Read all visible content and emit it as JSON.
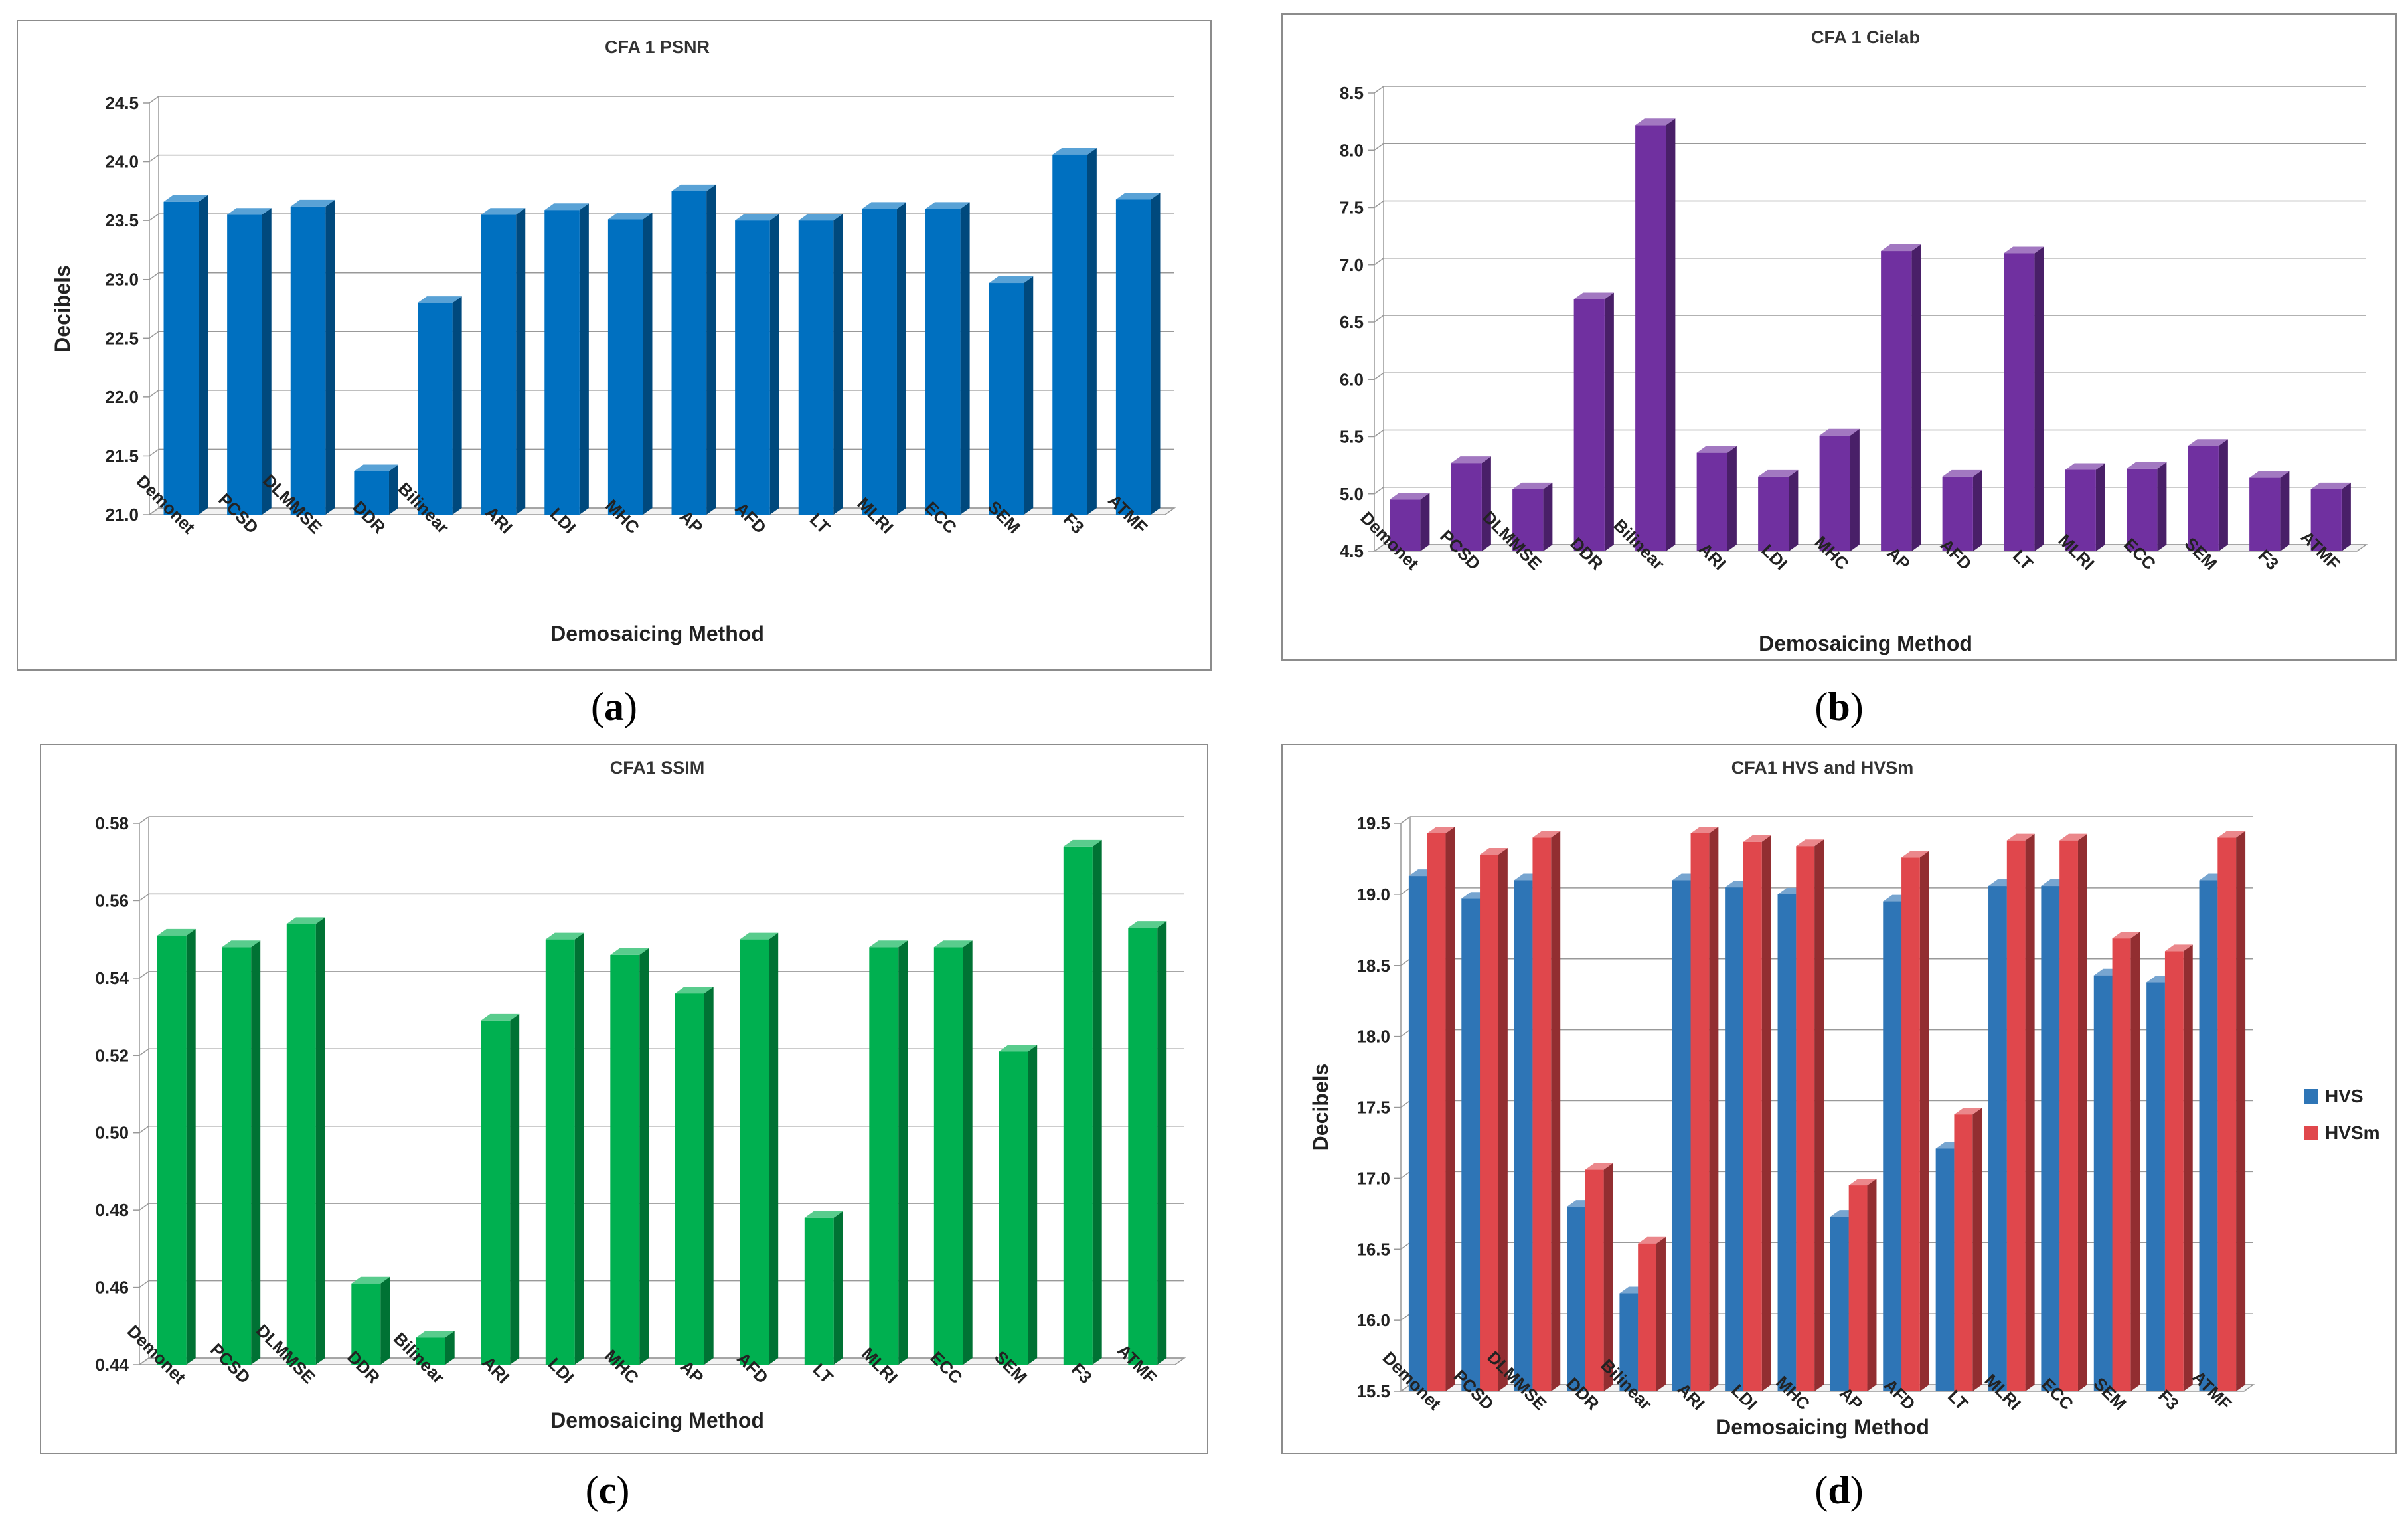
{
  "captions": [
    "a",
    "b",
    "c",
    "d"
  ],
  "chart_data": [
    {
      "type": "bar",
      "title": "CFA 1 PSNR",
      "xlabel": "Demosaicing Method",
      "ylabel": "Decibels",
      "ylim": [
        21.0,
        24.5
      ],
      "yticks": [
        "21.0",
        "21.5",
        "22.0",
        "22.5",
        "23.0",
        "23.5",
        "24.0",
        "24.5"
      ],
      "categories": [
        "Demonet",
        "PCSD",
        "DLMMSE",
        "DDR",
        "Bilinear",
        "ARI",
        "LDI",
        "MHC",
        "AP",
        "AFD",
        "LT",
        "MLRI",
        "ECC",
        "SEM",
        "F3",
        "ATMF"
      ],
      "series": [
        {
          "name": "PSNR",
          "color": "#0070C0",
          "values": [
            23.66,
            23.55,
            23.62,
            21.37,
            22.8,
            23.55,
            23.59,
            23.51,
            23.75,
            23.5,
            23.5,
            23.6,
            23.6,
            22.97,
            24.06,
            23.68
          ]
        }
      ]
    },
    {
      "type": "bar",
      "title": "CFA 1 Cielab",
      "xlabel": "Demosaicing Method",
      "ylabel": "",
      "ylim": [
        4.5,
        8.5
      ],
      "yticks": [
        "4.5",
        "5.0",
        "5.5",
        "6.0",
        "6.5",
        "7.0",
        "7.5",
        "8.0",
        "8.5"
      ],
      "categories": [
        "Demonet",
        "PCSD",
        "DLMMSE",
        "DDR",
        "Bilinear",
        "ARI",
        "LDI",
        "MHC",
        "AP",
        "AFD",
        "LT",
        "MLRI",
        "ECC",
        "SEM",
        "F3",
        "ATMF"
      ],
      "series": [
        {
          "name": "Cielab",
          "color": "#7030A0",
          "values": [
            4.95,
            5.27,
            5.04,
            6.7,
            8.22,
            5.36,
            5.15,
            5.51,
            7.12,
            5.15,
            7.1,
            5.21,
            5.22,
            5.42,
            5.14,
            5.04
          ]
        }
      ]
    },
    {
      "type": "bar",
      "title": "CFA1 SSIM",
      "xlabel": "Demosaicing Method",
      "ylabel": "",
      "ylim": [
        0.44,
        0.58
      ],
      "yticks": [
        "0.44",
        "0.46",
        "0.48",
        "0.50",
        "0.52",
        "0.54",
        "0.56",
        "0.58"
      ],
      "categories": [
        "Demonet",
        "PCSD",
        "DLMMSE",
        "DDR",
        "Bilinear",
        "ARI",
        "LDI",
        "MHC",
        "AP",
        "AFD",
        "LT",
        "MLRI",
        "ECC",
        "SEM",
        "F3",
        "ATMF"
      ],
      "series": [
        {
          "name": "SSIM",
          "color": "#00B050",
          "values": [
            0.551,
            0.548,
            0.554,
            0.461,
            0.447,
            0.529,
            0.55,
            0.546,
            0.536,
            0.55,
            0.478,
            0.548,
            0.548,
            0.521,
            0.574,
            0.553
          ]
        }
      ]
    },
    {
      "type": "bar",
      "title": "CFA1 HVS and HVSm",
      "xlabel": "Demosaicing Method",
      "ylabel": "Decibels",
      "ylim": [
        15.5,
        19.5
      ],
      "yticks": [
        "15.5",
        "16.0",
        "16.5",
        "17.0",
        "17.5",
        "18.0",
        "18.5",
        "19.0",
        "19.5"
      ],
      "categories": [
        "Demonet",
        "PCSD",
        "DLMMSE",
        "DDR",
        "Bilinear",
        "ARI",
        "LDI",
        "MHC",
        "AP",
        "AFD",
        "LT",
        "MLRI",
        "ECC",
        "SEM",
        "F3",
        "ATMF"
      ],
      "legend": "right",
      "series": [
        {
          "name": "HVS",
          "color": "#2E75B6",
          "values": [
            19.13,
            18.97,
            19.1,
            16.8,
            16.19,
            19.1,
            19.05,
            19.0,
            16.73,
            18.95,
            17.21,
            19.06,
            19.06,
            18.43,
            18.38,
            19.1
          ]
        },
        {
          "name": "HVSm",
          "color": "#E0474C",
          "values": [
            19.43,
            19.28,
            19.4,
            17.06,
            16.54,
            19.43,
            19.37,
            19.34,
            16.95,
            19.26,
            17.45,
            19.38,
            19.38,
            18.69,
            18.6,
            19.4
          ]
        }
      ]
    }
  ]
}
